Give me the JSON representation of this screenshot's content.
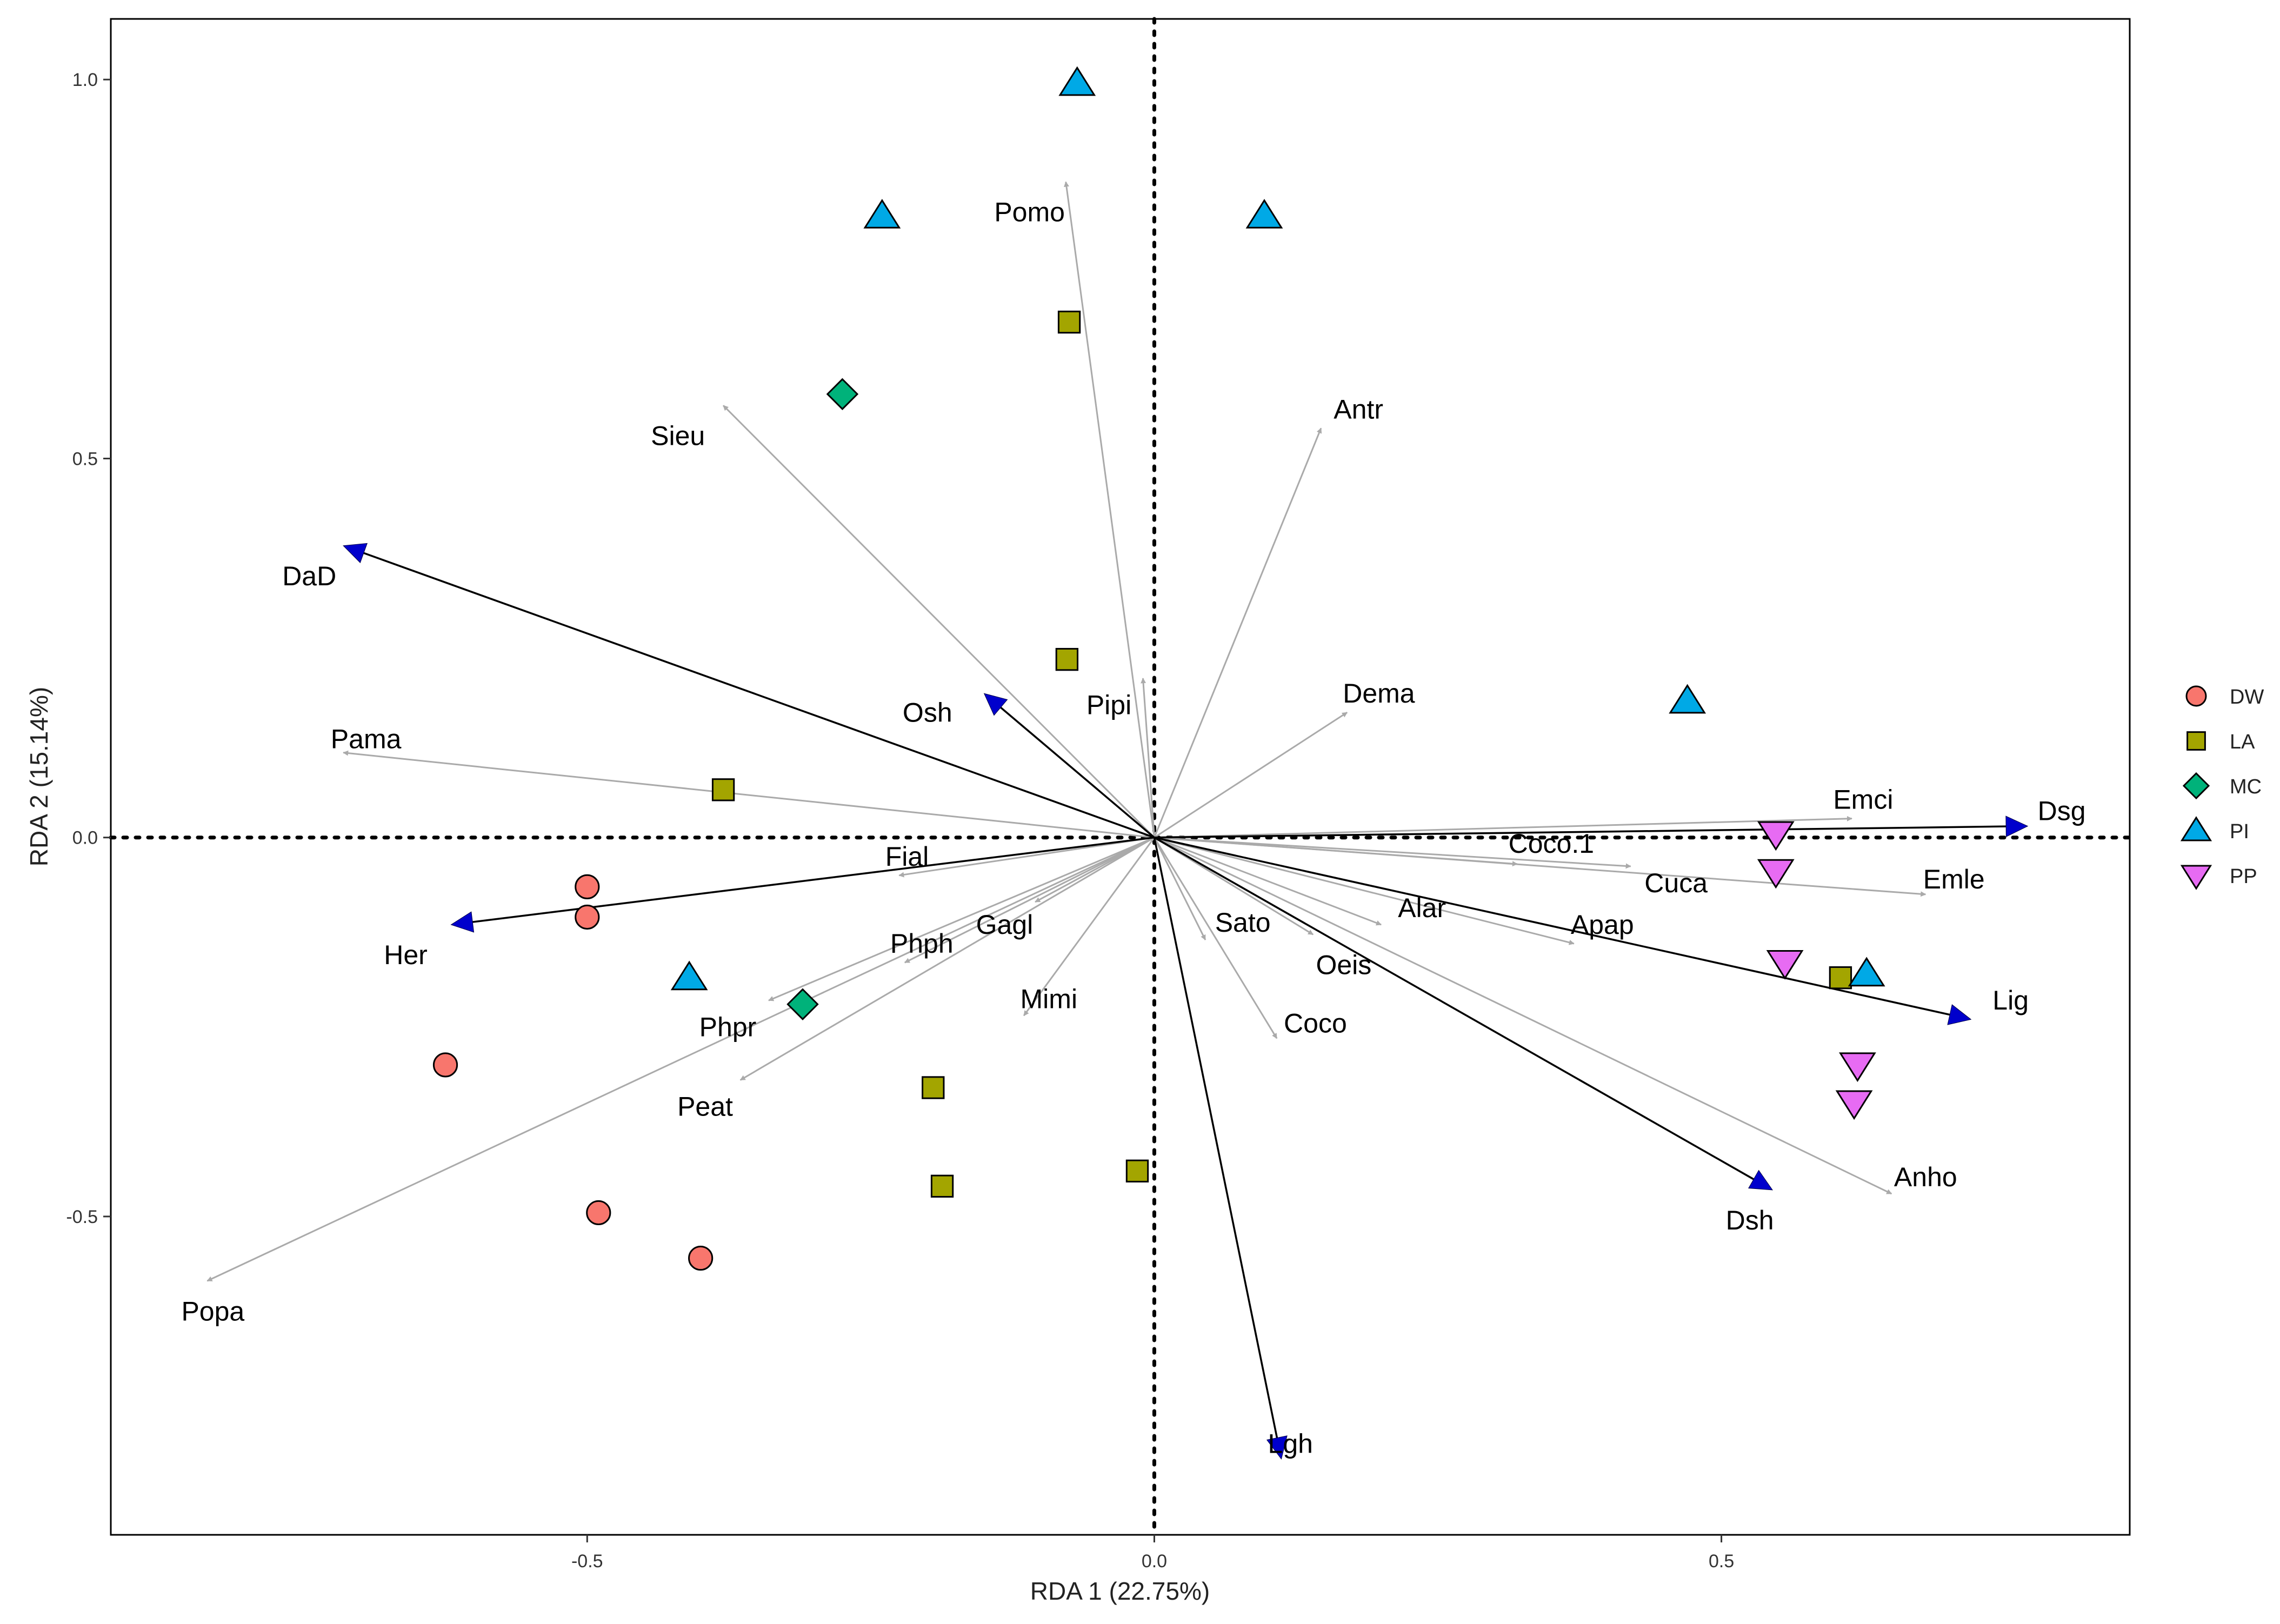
{
  "chart_data": {
    "type": "scatter",
    "subtype": "rda-biplot",
    "xlabel": "RDA 1 (22.75%)",
    "ylabel": "RDA 2 (15.14%)",
    "xlim": [
      -0.92,
      0.86
    ],
    "ylim": [
      -0.92,
      1.08
    ],
    "x_ticks": [
      -0.5,
      0.0,
      0.5
    ],
    "x_tick_labels": [
      "-0.5",
      "0.0",
      "0.5"
    ],
    "y_ticks": [
      -0.5,
      0.0,
      0.5,
      1.0
    ],
    "y_tick_labels": [
      "-0.5",
      "0.0",
      "0.5",
      "1.0"
    ],
    "grid": false,
    "zero_lines": "dotted",
    "legend_position": "right",
    "colors": {
      "DW": "#F8766D",
      "LA": "#A3A500",
      "MC": "#00B27A",
      "PI": "#00A9E6",
      "PP": "#E76BF3",
      "species_arrow": "#aaaaaa",
      "env_arrow_line": "#000000",
      "env_arrow_head": "#0000cc"
    },
    "legend": [
      {
        "label": "DW",
        "shape": "circle"
      },
      {
        "label": "LA",
        "shape": "square"
      },
      {
        "label": "MC",
        "shape": "diamond"
      },
      {
        "label": "PI",
        "shape": "triangle-up"
      },
      {
        "label": "PP",
        "shape": "triangle-down"
      }
    ],
    "sites": [
      {
        "group": "DW",
        "x": -0.5,
        "y": -0.065
      },
      {
        "group": "DW",
        "x": -0.5,
        "y": -0.105
      },
      {
        "group": "DW",
        "x": -0.625,
        "y": -0.3
      },
      {
        "group": "DW",
        "x": -0.49,
        "y": -0.495
      },
      {
        "group": "DW",
        "x": -0.4,
        "y": -0.555
      },
      {
        "group": "LA",
        "x": -0.075,
        "y": 0.68
      },
      {
        "group": "LA",
        "x": -0.077,
        "y": 0.235
      },
      {
        "group": "LA",
        "x": -0.38,
        "y": 0.063
      },
      {
        "group": "LA",
        "x": -0.195,
        "y": -0.33
      },
      {
        "group": "LA",
        "x": -0.187,
        "y": -0.46
      },
      {
        "group": "LA",
        "x": -0.015,
        "y": -0.44
      },
      {
        "group": "LA",
        "x": 0.605,
        "y": -0.185
      },
      {
        "group": "MC",
        "x": -0.275,
        "y": 0.585
      },
      {
        "group": "MC",
        "x": -0.31,
        "y": -0.22
      },
      {
        "group": "PI",
        "x": -0.068,
        "y": 0.995
      },
      {
        "group": "PI",
        "x": -0.24,
        "y": 0.82
      },
      {
        "group": "PI",
        "x": 0.097,
        "y": 0.82
      },
      {
        "group": "PI",
        "x": 0.47,
        "y": 0.18
      },
      {
        "group": "PI",
        "x": -0.41,
        "y": -0.185
      },
      {
        "group": "PI",
        "x": 0.628,
        "y": -0.18
      },
      {
        "group": "PP",
        "x": 0.548,
        "y": 0.005
      },
      {
        "group": "PP",
        "x": 0.548,
        "y": -0.045
      },
      {
        "group": "PP",
        "x": 0.556,
        "y": -0.165
      },
      {
        "group": "PP",
        "x": 0.62,
        "y": -0.3
      },
      {
        "group": "PP",
        "x": 0.617,
        "y": -0.35
      }
    ],
    "species_arrows": [
      {
        "label": "Pomo",
        "x": -0.078,
        "y": 0.865,
        "lx": -0.11,
        "ly": 0.825
      },
      {
        "label": "Antr",
        "x": 0.147,
        "y": 0.54,
        "lx": 0.18,
        "ly": 0.565
      },
      {
        "label": "Sieu",
        "x": -0.38,
        "y": 0.57,
        "lx": -0.42,
        "ly": 0.53
      },
      {
        "label": "Pipi",
        "x": -0.01,
        "y": 0.21,
        "lx": -0.04,
        "ly": 0.175
      },
      {
        "label": "Dema",
        "x": 0.17,
        "y": 0.165,
        "lx": 0.198,
        "ly": 0.19
      },
      {
        "label": "Pama",
        "x": -0.715,
        "y": 0.112,
        "lx": -0.695,
        "ly": 0.13
      },
      {
        "label": "Fial",
        "x": -0.225,
        "y": -0.05,
        "lx": -0.218,
        "ly": -0.025
      },
      {
        "label": "Emci",
        "x": 0.615,
        "y": 0.025,
        "lx": 0.625,
        "ly": 0.05
      },
      {
        "label": "Coco.1",
        "x": 0.32,
        "y": -0.035,
        "lx": 0.35,
        "ly": -0.008
      },
      {
        "label": "Cuca",
        "x": 0.42,
        "y": -0.038,
        "lx": 0.46,
        "ly": -0.06
      },
      {
        "label": "Emle",
        "x": 0.68,
        "y": -0.075,
        "lx": 0.705,
        "ly": -0.055
      },
      {
        "label": "Alar",
        "x": 0.2,
        "y": -0.115,
        "lx": 0.236,
        "ly": -0.093
      },
      {
        "label": "Apap",
        "x": 0.37,
        "y": -0.14,
        "lx": 0.395,
        "ly": -0.115
      },
      {
        "label": "Sato",
        "x": 0.045,
        "y": -0.135,
        "lx": 0.078,
        "ly": -0.112
      },
      {
        "label": "Oeis",
        "x": 0.14,
        "y": -0.128,
        "lx": 0.167,
        "ly": -0.168
      },
      {
        "label": "Coco",
        "x": 0.108,
        "y": -0.265,
        "lx": 0.142,
        "ly": -0.245
      },
      {
        "label": "Gagl",
        "x": -0.105,
        "y": -0.085,
        "lx": -0.132,
        "ly": -0.115
      },
      {
        "label": "Phph",
        "x": -0.22,
        "y": -0.165,
        "lx": -0.205,
        "ly": -0.14
      },
      {
        "label": "Mimi",
        "x": -0.115,
        "y": -0.235,
        "lx": -0.093,
        "ly": -0.213
      },
      {
        "label": "Phpr",
        "x": -0.34,
        "y": -0.215,
        "lx": -0.376,
        "ly": -0.25
      },
      {
        "label": "Peat",
        "x": -0.365,
        "y": -0.32,
        "lx": -0.396,
        "ly": -0.355
      },
      {
        "label": "Anho",
        "x": 0.65,
        "y": -0.47,
        "lx": 0.68,
        "ly": -0.448
      },
      {
        "label": "Popa",
        "x": -0.835,
        "y": -0.585,
        "lx": -0.83,
        "ly": -0.625
      }
    ],
    "env_arrows": [
      {
        "label": "DaD",
        "x": -0.715,
        "y": 0.385,
        "lx": -0.745,
        "ly": 0.345
      },
      {
        "label": "Osh",
        "x": -0.15,
        "y": 0.19,
        "lx": -0.2,
        "ly": 0.165
      },
      {
        "label": "Her",
        "x": -0.62,
        "y": -0.115,
        "lx": -0.66,
        "ly": -0.155
      },
      {
        "label": "Dsg",
        "x": 0.77,
        "y": 0.015,
        "lx": 0.8,
        "ly": 0.035
      },
      {
        "label": "Lig",
        "x": 0.72,
        "y": -0.24,
        "lx": 0.755,
        "ly": -0.215
      },
      {
        "label": "Dsh",
        "x": 0.545,
        "y": -0.465,
        "lx": 0.525,
        "ly": -0.505
      },
      {
        "label": "Lgh",
        "x": 0.112,
        "y": -0.82,
        "lx": 0.12,
        "ly": -0.8
      }
    ]
  }
}
